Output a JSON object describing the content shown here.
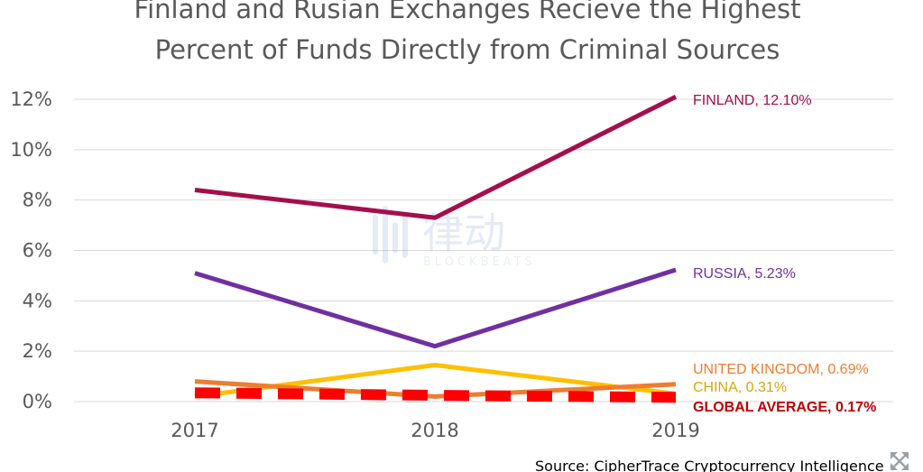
{
  "chart_data": {
    "type": "line",
    "title_lines": [
      "Finland and Rusian Exchanges Recieve the Highest",
      "Percent of Funds Directly from Criminal Sources"
    ],
    "x": [
      "2017",
      "2018",
      "2019"
    ],
    "ylim": [
      0,
      12
    ],
    "y_ticks": [
      {
        "value": 0,
        "label": "0%"
      },
      {
        "value": 2,
        "label": "2%"
      },
      {
        "value": 4,
        "label": "4%"
      },
      {
        "value": 6,
        "label": "6%"
      },
      {
        "value": 8,
        "label": "8%"
      },
      {
        "value": 10,
        "label": "10%"
      },
      {
        "value": 12,
        "label": "12%"
      }
    ],
    "grid": true,
    "series": [
      {
        "key": "finland",
        "label": "FINLAND, 12.10%",
        "color": "#a50e4b",
        "style": "solid",
        "values": [
          8.4,
          7.3,
          12.1
        ]
      },
      {
        "key": "russia",
        "label": "RUSSIA, 5.23%",
        "color": "#7030a0",
        "style": "solid",
        "values": [
          5.1,
          2.2,
          5.23
        ]
      },
      {
        "key": "united-kingdom",
        "label": "UNITED KINGDOM, 0.69%",
        "color": "#ed7d31",
        "style": "solid",
        "values": [
          0.8,
          0.2,
          0.69
        ]
      },
      {
        "key": "china",
        "label": "CHINA, 0.31%",
        "color": "#d4a707",
        "line_color": "#ffc000",
        "style": "solid",
        "values": [
          0.2,
          1.45,
          0.31
        ]
      },
      {
        "key": "global-average",
        "label": "GLOBAL AVERAGE, 0.17%",
        "color": "#c00000",
        "line_color": "#ff0000",
        "style": "dashed",
        "values": [
          0.35,
          0.25,
          0.17
        ]
      }
    ],
    "source": "Source: CipherTrace Cryptocurrency Intelligence"
  },
  "watermark": {
    "cjk": "律动",
    "text": "BLOCKBEATS"
  },
  "icons": {
    "corner": "expand-arrows-icon"
  }
}
